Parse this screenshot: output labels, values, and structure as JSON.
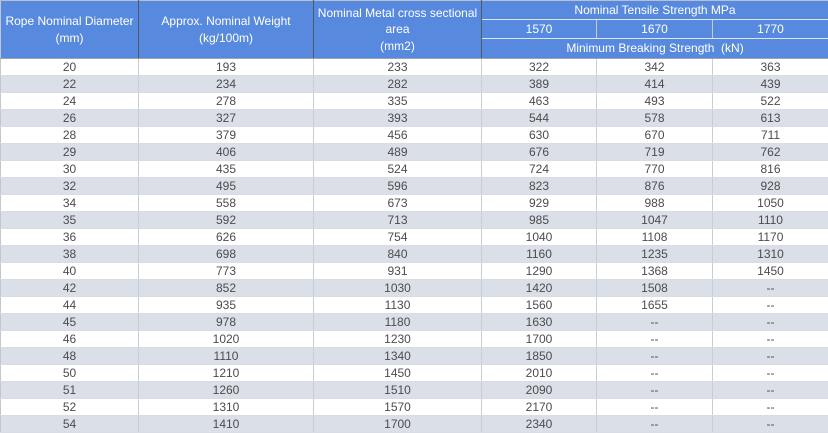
{
  "table": {
    "header": {
      "rope_diameter": {
        "line1": "Rope Nominal Diameter",
        "line2": "(mm)"
      },
      "nominal_weight": {
        "line1": "Approx. Nominal Weight",
        "line2": "(kg/100m)"
      },
      "cross_section": {
        "line1": "Nominal Metal cross sectional",
        "line2": "area",
        "line3": "(mm2)"
      },
      "tensile_group_label": "Nominal Tensile Strength MPa",
      "grades": [
        "1570",
        "1670",
        "1770"
      ],
      "breaking_label": "Minimum Breaking Strength  (kN)"
    },
    "rows": [
      [
        "20",
        "193",
        "233",
        "322",
        "342",
        "363"
      ],
      [
        "22",
        "234",
        "282",
        "389",
        "414",
        "439"
      ],
      [
        "24",
        "278",
        "335",
        "463",
        "493",
        "522"
      ],
      [
        "26",
        "327",
        "393",
        "544",
        "578",
        "613"
      ],
      [
        "28",
        "379",
        "456",
        "630",
        "670",
        "711"
      ],
      [
        "29",
        "406",
        "489",
        "676",
        "719",
        "762"
      ],
      [
        "30",
        "435",
        "524",
        "724",
        "770",
        "816"
      ],
      [
        "32",
        "495",
        "596",
        "823",
        "876",
        "928"
      ],
      [
        "34",
        "558",
        "673",
        "929",
        "988",
        "1050"
      ],
      [
        "35",
        "592",
        "713",
        "985",
        "1047",
        "1110"
      ],
      [
        "36",
        "626",
        "754",
        "1040",
        "1108",
        "1170"
      ],
      [
        "38",
        "698",
        "840",
        "1160",
        "1235",
        "1310"
      ],
      [
        "40",
        "773",
        "931",
        "1290",
        "1368",
        "1450"
      ],
      [
        "42",
        "852",
        "1030",
        "1420",
        "1508",
        "--"
      ],
      [
        "44",
        "935",
        "1130",
        "1560",
        "1655",
        "--"
      ],
      [
        "45",
        "978",
        "1180",
        "1630",
        "--",
        "--"
      ],
      [
        "46",
        "1020",
        "1230",
        "1700",
        "--",
        "--"
      ],
      [
        "48",
        "1110",
        "1340",
        "1850",
        "--",
        "--"
      ],
      [
        "50",
        "1210",
        "1450",
        "2010",
        "--",
        "--"
      ],
      [
        "51",
        "1260",
        "1510",
        "2090",
        "--",
        "--"
      ],
      [
        "52",
        "1310",
        "1570",
        "2170",
        "--",
        "--"
      ],
      [
        "54",
        "1410",
        "1700",
        "2340",
        "--",
        "--"
      ]
    ]
  },
  "colors": {
    "header_bg": "#5789DE",
    "header_text": "#FFFFFF",
    "row_bg": "#FFFFFF",
    "row_alt_bg": "#DBDFE8",
    "data_text": "#4C4C4C"
  }
}
